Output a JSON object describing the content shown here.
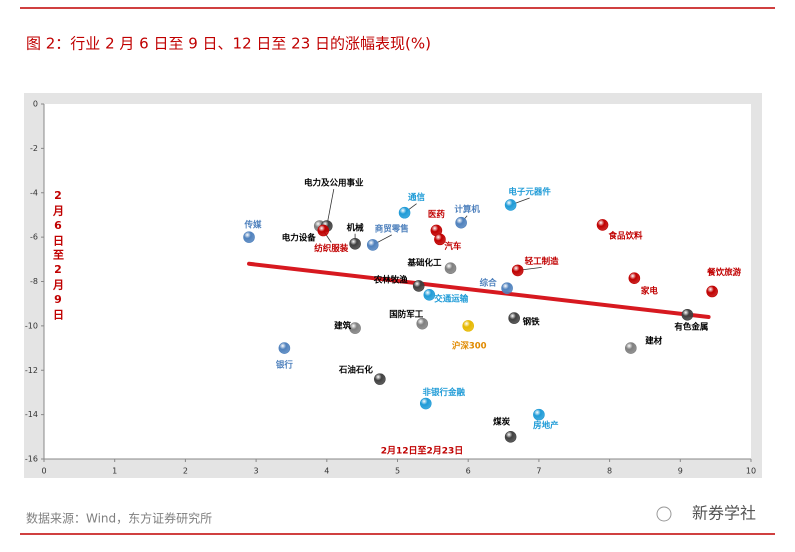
{
  "chart_data": {
    "type": "scatter",
    "title": "图 2：行业 2 月 6 日至 9 日、12 日至 23 日的涨幅表现(%)",
    "x_label": "2月12日至2月23日",
    "y_label": "2月6日至2月9日",
    "source": "数据来源：Wind，东方证券研究所",
    "watermark": "新券学社",
    "xlim": [
      0,
      10
    ],
    "xticks": [
      0,
      1,
      2,
      3,
      4,
      5,
      6,
      7,
      8,
      9,
      10
    ],
    "ylim": [
      -16,
      0
    ],
    "yticks": [
      0,
      -2,
      -4,
      -6,
      -8,
      -10,
      -12,
      -14,
      -16
    ],
    "trend": {
      "color": "#d71920",
      "x": [
        2.9,
        9.4
      ],
      "y": [
        -7.2,
        -9.6
      ]
    },
    "points": [
      {
        "label": "传媒",
        "x": 2.9,
        "y": -6.0,
        "color": "#4f81bd"
      },
      {
        "label": "银行",
        "x": 3.4,
        "y": -11.0,
        "color": "#4f81bd"
      },
      {
        "label": "电力设备",
        "x": 3.9,
        "y": -5.5,
        "color": "#7f7f7f"
      },
      {
        "label": "电力及公用事业",
        "x": 4.0,
        "y": -5.5,
        "color": "#404040"
      },
      {
        "label": "纺织服装",
        "x": 3.95,
        "y": -5.7,
        "color": "#c00000"
      },
      {
        "label": "机械",
        "x": 4.4,
        "y": -6.3,
        "color": "#404040"
      },
      {
        "label": "建筑",
        "x": 4.4,
        "y": -10.1,
        "color": "#7f7f7f"
      },
      {
        "label": "商贸零售",
        "x": 4.65,
        "y": -6.35,
        "color": "#4f81bd"
      },
      {
        "label": "通信",
        "x": 5.1,
        "y": -4.9,
        "color": "#1f9bd7"
      },
      {
        "label": "医药",
        "x": 5.55,
        "y": -5.7,
        "color": "#c00000"
      },
      {
        "label": "汽车",
        "x": 5.6,
        "y": -6.1,
        "color": "#c00000"
      },
      {
        "label": "计算机",
        "x": 5.9,
        "y": -5.35,
        "color": "#4f81bd"
      },
      {
        "label": "电子元器件",
        "x": 6.6,
        "y": -4.55,
        "color": "#1f9bd7"
      },
      {
        "label": "基础化工",
        "x": 5.75,
        "y": -7.4,
        "color": "#7f7f7f"
      },
      {
        "label": "农林牧渔",
        "x": 5.3,
        "y": -8.2,
        "color": "#404040"
      },
      {
        "label": "交通运输",
        "x": 5.45,
        "y": -8.6,
        "color": "#1f9bd7"
      },
      {
        "label": "综合",
        "x": 6.55,
        "y": -8.3,
        "color": "#4f81bd"
      },
      {
        "label": "轻工制造",
        "x": 6.7,
        "y": -7.5,
        "color": "#c00000"
      },
      {
        "label": "国防军工",
        "x": 5.35,
        "y": -9.9,
        "color": "#7f7f7f"
      },
      {
        "label": "钢铁",
        "x": 6.65,
        "y": -9.65,
        "color": "#404040"
      },
      {
        "label": "沪深300",
        "x": 6.0,
        "y": -10.0,
        "color": "#e6b800"
      },
      {
        "label": "石油石化",
        "x": 4.75,
        "y": -12.4,
        "color": "#404040"
      },
      {
        "label": "非银行金融",
        "x": 5.4,
        "y": -13.5,
        "color": "#1f9bd7"
      },
      {
        "label": "煤炭",
        "x": 6.6,
        "y": -15.0,
        "color": "#404040"
      },
      {
        "label": "房地产",
        "x": 7.0,
        "y": -14.0,
        "color": "#1f9bd7"
      },
      {
        "label": "食品饮料",
        "x": 7.9,
        "y": -5.45,
        "color": "#c00000"
      },
      {
        "label": "家电",
        "x": 8.35,
        "y": -7.85,
        "color": "#c00000"
      },
      {
        "label": "餐饮旅游",
        "x": 9.45,
        "y": -8.45,
        "color": "#c00000"
      },
      {
        "label": "有色金属",
        "x": 9.1,
        "y": -9.5,
        "color": "#404040"
      },
      {
        "label": "建材",
        "x": 8.3,
        "y": -11.0,
        "color": "#7f7f7f"
      }
    ]
  }
}
